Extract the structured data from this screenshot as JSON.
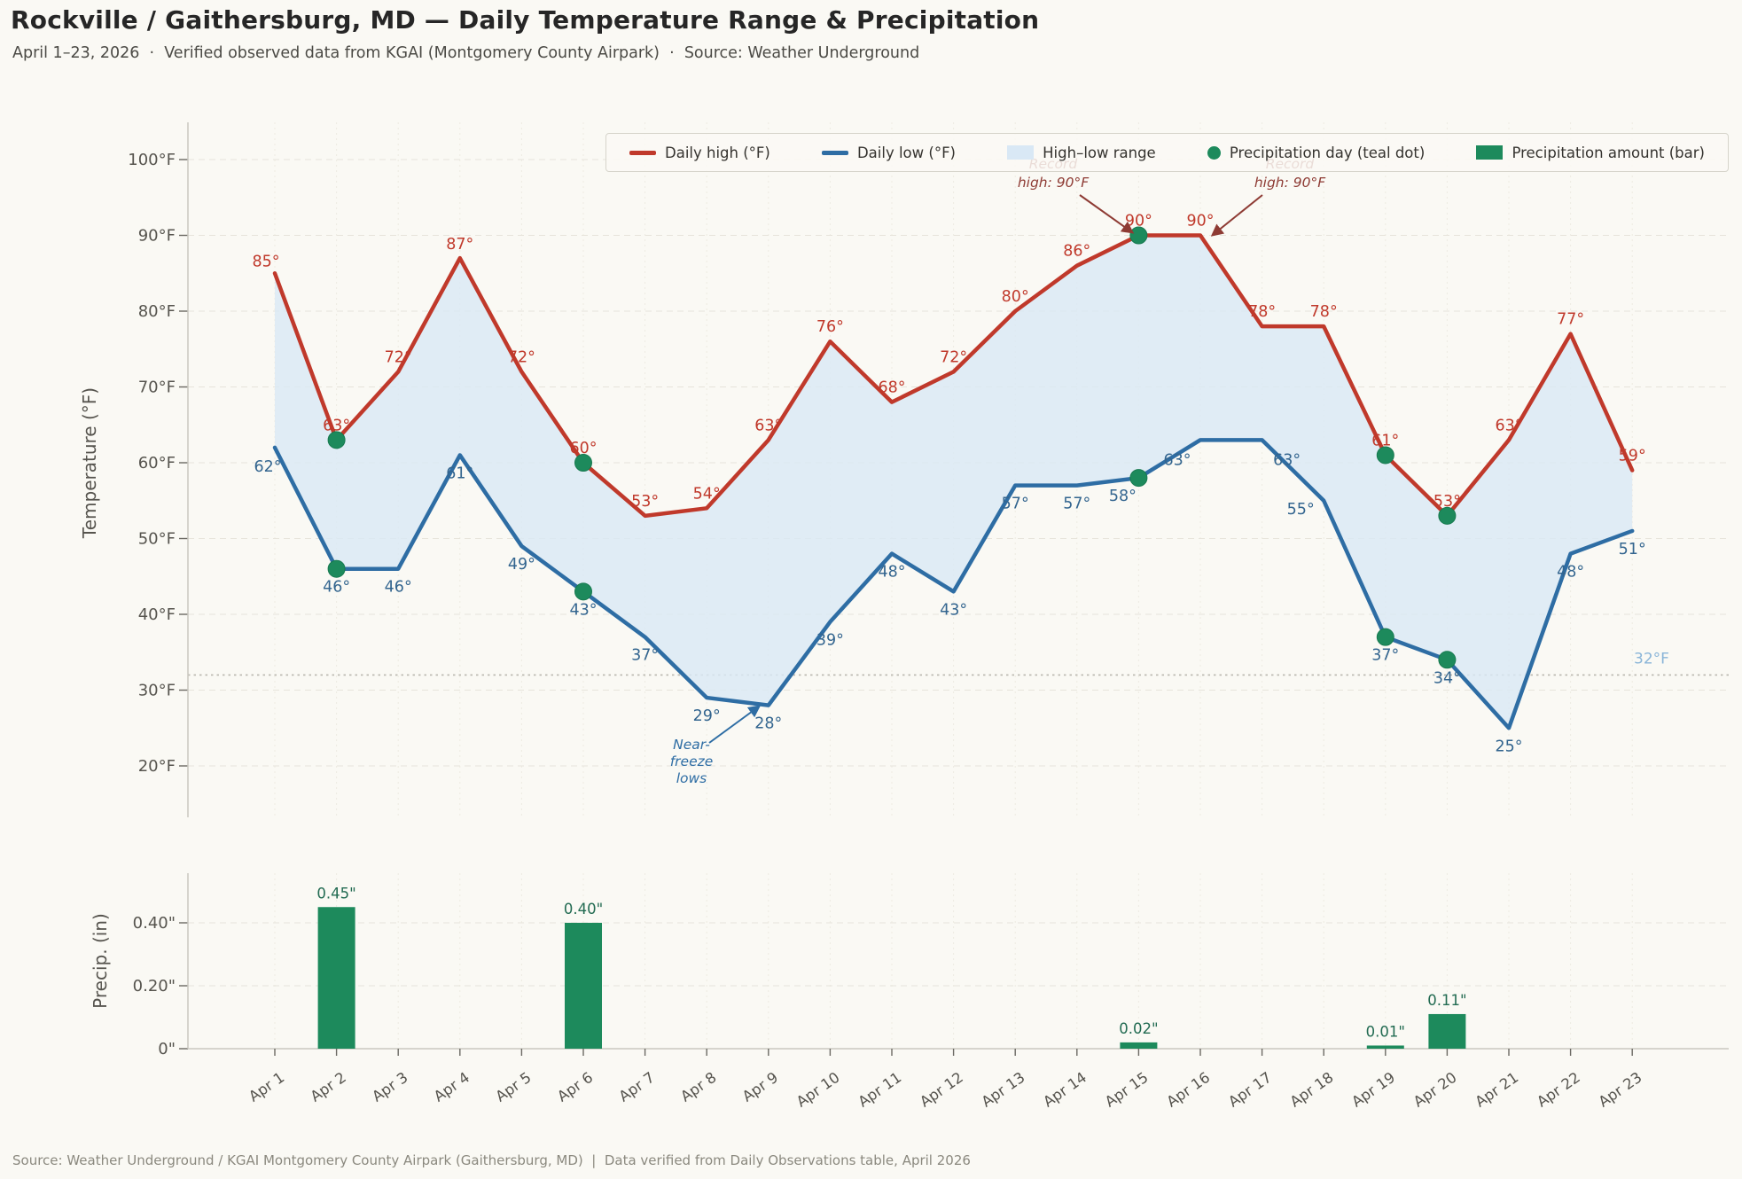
{
  "header": {
    "title": "Rockville / Gaithersburg, MD — Daily Temperature Range & Precipitation",
    "subtitle": "April 1–23, 2026  ·  Verified observed data from KGAI (Montgomery County Airpark)  ·  Source: Weather Underground"
  },
  "footer": {
    "text": "Source: Weather Underground / KGAI Montgomery County Airpark (Gaithersburg, MD)  |  Data verified from Daily Observations table, April 2026"
  },
  "legend": {
    "items": [
      {
        "swatch": "line",
        "color": "#c0392b",
        "icon": "high-line-swatch",
        "label": "Daily high (°F)"
      },
      {
        "swatch": "line",
        "color": "#2e6da4",
        "icon": "low-line-swatch",
        "label": "Daily low (°F)"
      },
      {
        "swatch": "rect",
        "color": "#d9e8f5",
        "icon": "range-fill-swatch",
        "label": "High–low range"
      },
      {
        "swatch": "dot",
        "color": "#1d8a5c",
        "icon": "precip-day-dot-swatch",
        "label": "Precipitation day (teal dot)"
      },
      {
        "swatch": "rect",
        "color": "#1d8a5c",
        "icon": "precip-bar-swatch",
        "label": "Precipitation amount (bar)"
      }
    ]
  },
  "colors": {
    "background": "#faf9f4",
    "high_line": "#c0392b",
    "low_line": "#2e6da4",
    "range_fill": "#d9e8f5",
    "teal": "#1d8a5c",
    "bar_label": "#226b52",
    "annotation_red": "#8e3b34",
    "annotation_blue": "#2e6da4",
    "freeze_label": "#8ab5d8",
    "grid": "#e7e4db",
    "axis_text": "#56544e"
  },
  "chart_data": {
    "type": "line+bar",
    "title": "Rockville / Gaithersburg, MD — Daily Temperature Range & Precipitation",
    "x_labels": [
      "Apr 1",
      "Apr 2",
      "Apr 3",
      "Apr 4",
      "Apr 5",
      "Apr 6",
      "Apr 7",
      "Apr 8",
      "Apr 9",
      "Apr 10",
      "Apr 11",
      "Apr 12",
      "Apr 13",
      "Apr 14",
      "Apr 15",
      "Apr 16",
      "Apr 17",
      "Apr 18",
      "Apr 19",
      "Apr 20",
      "Apr 21",
      "Apr 22",
      "Apr 23"
    ],
    "temperature": {
      "ylabel": "Temperature (°F)",
      "ylim": [
        15,
        105
      ],
      "yticks": [
        20,
        30,
        40,
        50,
        60,
        70,
        80,
        90,
        100
      ],
      "ytick_labels": [
        "20°F",
        "30°F",
        "40°F",
        "50°F",
        "60°F",
        "70°F",
        "80°F",
        "90°F",
        "100°F"
      ],
      "grid": true,
      "range_fill_color": "#d9e8f5",
      "series": [
        {
          "name": "Daily high (°F)",
          "color": "#c0392b",
          "values": [
            85,
            63,
            72,
            87,
            72,
            60,
            53,
            54,
            63,
            76,
            68,
            72,
            80,
            86,
            90,
            90,
            78,
            78,
            61,
            53,
            63,
            77,
            59
          ]
        },
        {
          "name": "Daily low (°F)",
          "color": "#2e6da4",
          "values": [
            62,
            46,
            46,
            61,
            49,
            43,
            37,
            29,
            28,
            39,
            48,
            43,
            57,
            57,
            58,
            63,
            63,
            55,
            37,
            34,
            25,
            48,
            51
          ]
        }
      ],
      "freeze_line": {
        "value": 32,
        "label": "32°F",
        "label_color": "#8ab5d8"
      },
      "annotations": {
        "record_high": [
          {
            "lines": [
              "Record",
              "high: 90°F"
            ],
            "target_day": "Apr 15"
          },
          {
            "lines": [
              "Record",
              "high: 90°F"
            ],
            "target_day": "Apr 16"
          }
        ],
        "near_freeze": {
          "lines": [
            "Near-",
            "freeze",
            "lows"
          ],
          "target_day": "Apr 9"
        }
      }
    },
    "precipitation": {
      "ylabel": "Precip. (in)",
      "yticks": [
        0,
        0.2,
        0.4
      ],
      "ytick_labels": [
        "0\"",
        "0.20\"",
        "0.40\""
      ],
      "bar_color": "#1d8a5c",
      "values": [
        0,
        0.45,
        0,
        0,
        0,
        0.4,
        0,
        0,
        0,
        0,
        0,
        0,
        0,
        0,
        0.02,
        0,
        0,
        0,
        0.01,
        0.11,
        0,
        0,
        0
      ],
      "bar_labels": [
        "",
        "0.45\"",
        "",
        "",
        "",
        "0.40\"",
        "",
        "",
        "",
        "",
        "",
        "",
        "",
        "",
        "0.02\"",
        "",
        "",
        "",
        "0.01\"",
        "0.11\"",
        "",
        "",
        ""
      ]
    },
    "precip_day_indices": [
      1,
      5,
      14,
      18,
      19
    ]
  }
}
